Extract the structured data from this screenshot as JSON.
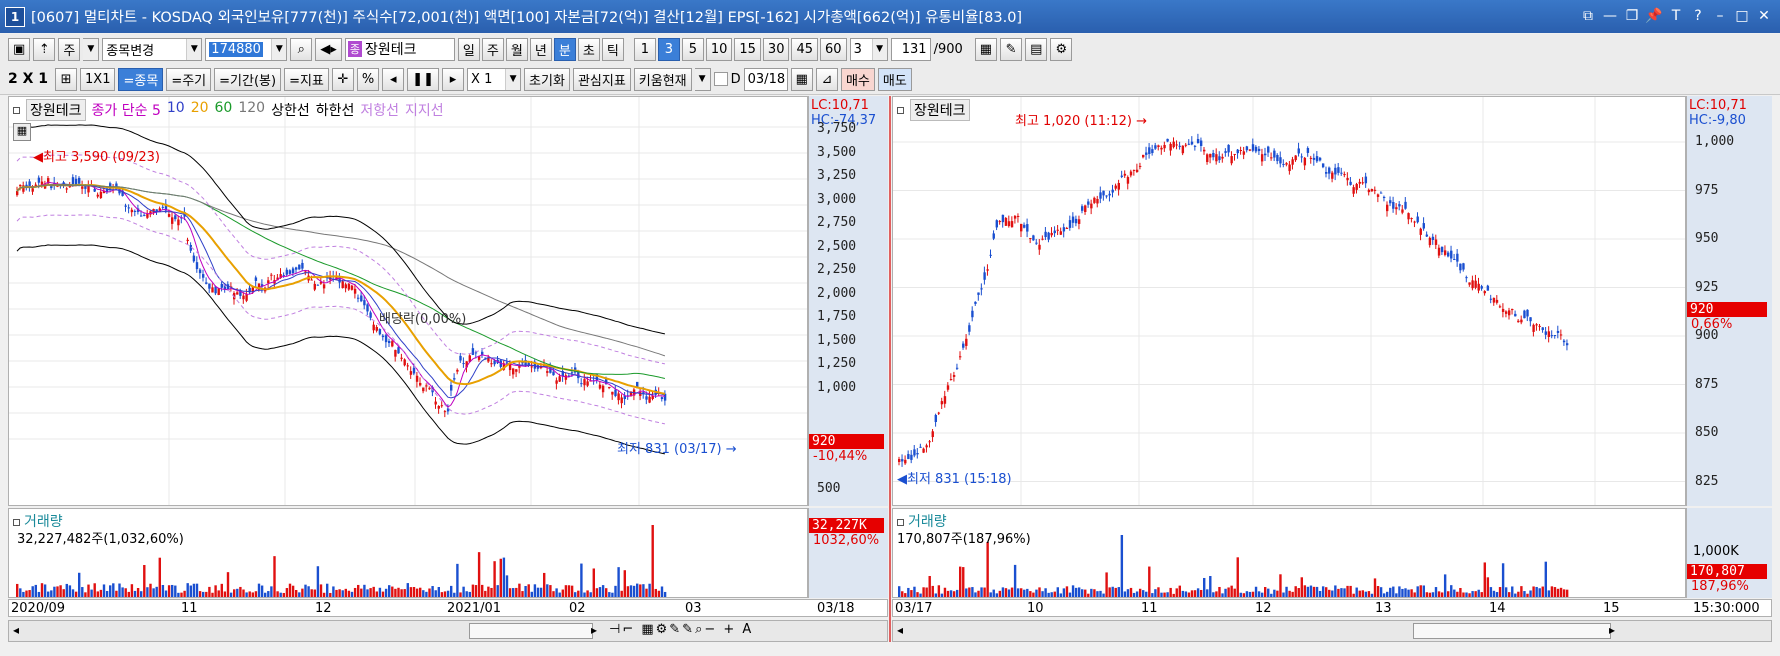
{
  "title": {
    "window_no": "1",
    "text": "[0607] 멀티차트 - KOSDAQ 외국인보유[777(천)] 주식수[72,001(천)] 액면[100] 자본금[72(억)] 결산[12월] EPS[-162] 시가총액[662(억)] 유통비율[83.0]"
  },
  "toolbar1": {
    "ju_label": "주",
    "change_label": "종목변경",
    "code": "174880",
    "stock_tag": "종",
    "stock_name": "장원테크",
    "periods": [
      "일",
      "주",
      "월",
      "년",
      "분",
      "초",
      "틱"
    ],
    "period_selected": "분",
    "minutes": [
      "1",
      "3",
      "5",
      "10",
      "15",
      "30",
      "45",
      "60"
    ],
    "minute_selected": "3",
    "custom_value": "3",
    "count": "131",
    "count_total": "/900"
  },
  "toolbar2": {
    "layout": "2 X 1",
    "one": "1X1",
    "tabs": [
      "=종목",
      "=주기",
      "=기간(봉)",
      "=지표"
    ],
    "tab_selected": "=종목",
    "percent": "%",
    "mult": "X 1",
    "reset": "초기화",
    "interest": "관심지표",
    "kiwoom": "키움현재",
    "date_prefix": "D",
    "date": "03/18",
    "buy": "매수",
    "sell": "매도"
  },
  "left_chart": {
    "stock": "장원테크",
    "legend": [
      {
        "text": "종가 단순 5",
        "color": "#c000c0"
      },
      {
        "text": "10",
        "color": "#3040c8"
      },
      {
        "text": "20",
        "color": "#e8a000"
      },
      {
        "text": "60",
        "color": "#1a9a2a"
      },
      {
        "text": "120",
        "color": "#777777"
      },
      {
        "text": "상한선",
        "color": "#000000"
      },
      {
        "text": "하한선",
        "color": "#000000"
      },
      {
        "text": "저항선",
        "color": "#c080e0"
      },
      {
        "text": "지지선",
        "color": "#c080e0"
      }
    ],
    "lc": "LC:10,71",
    "hc": "HC:-74,37",
    "yticks": [
      "3,750",
      "3,500",
      "3,250",
      "3,000",
      "2,750",
      "2,500",
      "2,250",
      "2,000",
      "1,750",
      "1,500",
      "1,250",
      "1,000",
      "500"
    ],
    "price_tag": "920",
    "change_tag": "-10,44%",
    "high_label": "최고 3,590 (09/23)",
    "low_label": "최저 831 (03/17)",
    "dividend_label": "배당락(0,00%)",
    "volume_title": "거래량",
    "volume_value": "32,227,482주(1,032,60%)",
    "volume_tag": "32,227K",
    "volume_pct": "1032,60%",
    "xlabels": [
      "2020/09",
      "11",
      "12",
      "2021/01",
      "02",
      "03",
      "03/18"
    ]
  },
  "right_chart": {
    "stock": "장원테크",
    "lc": "LC:10,71",
    "hc": "HC:-9,80",
    "yticks": [
      "1,000",
      "975",
      "950",
      "925",
      "900",
      "875",
      "850",
      "825"
    ],
    "price_tag": "920",
    "change_tag": "0,66%",
    "high_label": "최고 1,020 (11:12)",
    "low_label": "최저 831 (15:18)",
    "volume_title": "거래량",
    "volume_value": "170,807주(187,96%)",
    "volume_tick": "1,000K",
    "volume_tag": "170,807",
    "volume_pct": "187,96%",
    "xlabels": [
      "03/17",
      "10",
      "11",
      "12",
      "13",
      "14",
      "15",
      "15:30:000"
    ]
  },
  "colors": {
    "up": "#e01010",
    "down": "#1a4fd0",
    "axis_bg": "#dde6f2",
    "title_bg": "#2f68b8"
  }
}
